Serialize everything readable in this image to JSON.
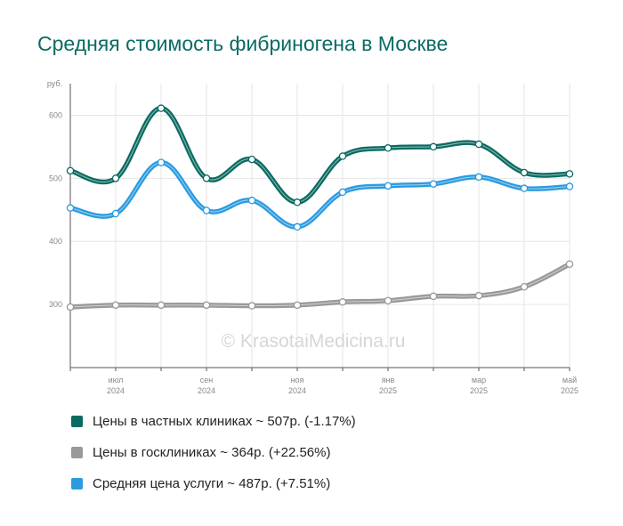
{
  "title": "Средняя стоимость фибриногена в Москве",
  "watermark": "© KrasotaiMedicina.ru",
  "colors": {
    "private": "#0b6b62",
    "public": "#999999",
    "average": "#2a9be0"
  },
  "legend": [
    {
      "label": "Цены в частных клиниках ~ 507р. (-1.17%)",
      "color": "#0b6b62"
    },
    {
      "label": "Цены в госклиниках ~ 364р. (+22.56%)",
      "color": "#999999"
    },
    {
      "label": "Средняя цена услуги ~ 487р. (+7.51%)",
      "color": "#2a9be0"
    }
  ],
  "chart_data": {
    "type": "line",
    "title": "Средняя стоимость фибриногена в Москве",
    "ylabel": "руб.",
    "ylim": [
      200,
      650
    ],
    "yticks": [
      300,
      400,
      500,
      600
    ],
    "x": [
      "2024-06",
      "2024-07",
      "2024-08",
      "2024-09",
      "2024-10",
      "2024-11",
      "2024-12",
      "2025-01",
      "2025-02",
      "2025-03",
      "2025-04",
      "2025-05"
    ],
    "xtick_labels": [
      {
        "month": "июл",
        "year": "2024",
        "at": "2024-07"
      },
      {
        "month": "сен",
        "year": "2024",
        "at": "2024-09"
      },
      {
        "month": "ноя",
        "year": "2024",
        "at": "2024-11"
      },
      {
        "month": "янв",
        "year": "2025",
        "at": "2025-01"
      },
      {
        "month": "мар",
        "year": "2025",
        "at": "2025-03"
      },
      {
        "month": "май",
        "year": "2025",
        "at": "2025-05"
      }
    ],
    "grid": true,
    "legend_position": "bottom",
    "series": [
      {
        "name": "Цены в частных клиниках",
        "color": "#0b6b62",
        "values": [
          512,
          500,
          611,
          500,
          530,
          462,
          535,
          548,
          550,
          554,
          509,
          507
        ]
      },
      {
        "name": "Цены в госклиниках",
        "color": "#999999",
        "values": [
          296,
          299,
          299,
          299,
          298,
          299,
          304,
          306,
          313,
          314,
          328,
          364
        ]
      },
      {
        "name": "Средняя цена услуги",
        "color": "#2a9be0",
        "values": [
          453,
          444,
          525,
          449,
          465,
          423,
          478,
          488,
          491,
          502,
          484,
          487
        ]
      }
    ]
  }
}
